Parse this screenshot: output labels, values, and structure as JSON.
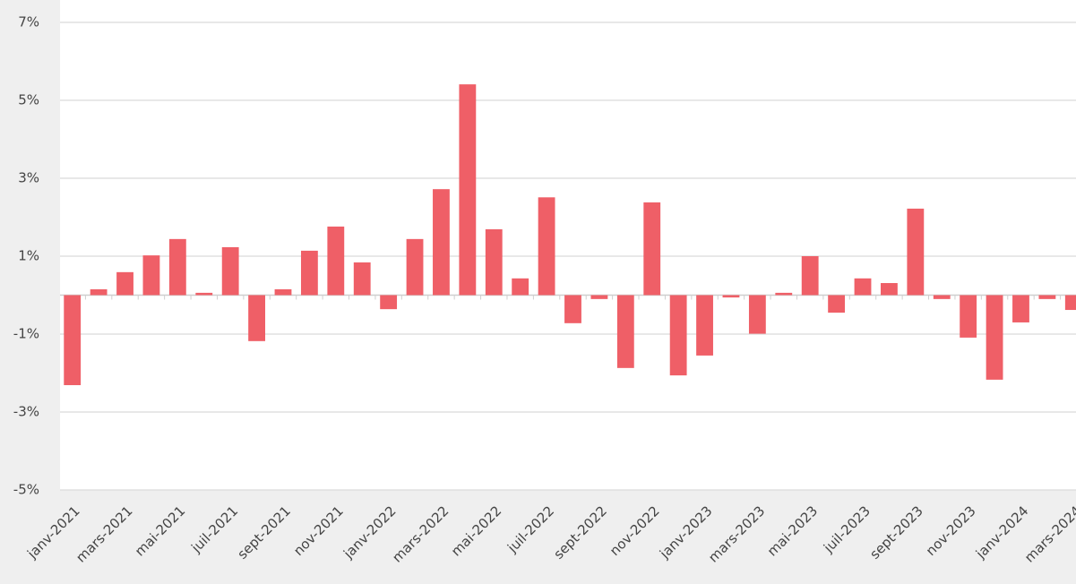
{
  "chart_data": {
    "type": "bar",
    "categories": [
      "janv-2021",
      null,
      "mars-2021",
      null,
      "mai-2021",
      null,
      "juil-2021",
      null,
      "sept-2021",
      null,
      "nov-2021",
      null,
      "janv-2022",
      null,
      "mars-2022",
      null,
      "mai-2022",
      null,
      "juil-2022",
      null,
      "sept-2022",
      null,
      "nov-2022",
      null,
      "janv-2023",
      null,
      "mars-2023",
      null,
      "mai-2023",
      null,
      "juil-2023",
      null,
      "sept-2023",
      null,
      "nov-2023",
      null,
      "janv-2024",
      null,
      "mars-2024"
    ],
    "values": [
      -2.31,
      0.15,
      0.59,
      1.02,
      1.44,
      0.06,
      1.23,
      -1.18,
      0.15,
      1.14,
      1.76,
      0.84,
      -0.36,
      1.44,
      2.72,
      5.41,
      1.69,
      0.43,
      2.51,
      -0.72,
      -0.1,
      -1.87,
      2.38,
      -2.06,
      -1.55,
      -0.06,
      -0.99,
      0.06,
      1.0,
      -0.45,
      0.43,
      0.31,
      2.22,
      -0.1,
      -1.09,
      -2.17,
      -0.7,
      -0.1,
      -0.38
    ],
    "color": "#ef5f67",
    "ylim": [
      -5,
      7
    ],
    "yticks": [
      {
        "value": -5,
        "label": "-5%"
      },
      {
        "value": -3,
        "label": "-3%"
      },
      {
        "value": -1,
        "label": "-1%"
      },
      {
        "value": 1,
        "label": "1%"
      },
      {
        "value": 3,
        "label": "3%"
      },
      {
        "value": 5,
        "label": "5%"
      },
      {
        "value": 7,
        "label": "7%"
      }
    ],
    "grid": true
  }
}
